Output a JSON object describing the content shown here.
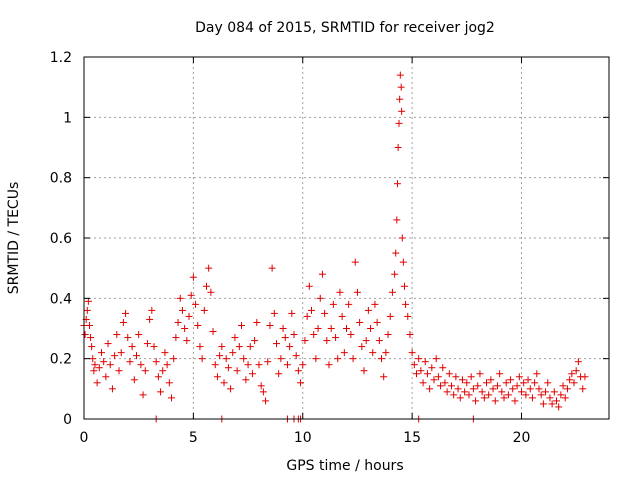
{
  "chart_data": {
    "type": "scatter",
    "title": "Day 084 of 2015, SRMTID for receiver jog2",
    "xlabel": "GPS time / hours",
    "ylabel": "SRMTID / TECUs",
    "xlim": [
      0,
      24
    ],
    "ylim": [
      0,
      1.2
    ],
    "xticks": [
      "0",
      "5",
      "10",
      "15",
      "20"
    ],
    "yticks": [
      "0",
      "0.2",
      "0.4",
      "0.6",
      "0.8",
      "1",
      "1.2"
    ],
    "grid": true,
    "marker": "plus",
    "marker_color": "#e00000",
    "series": [
      {
        "name": "SRMTID",
        "points": [
          [
            0.0,
            0.31
          ],
          [
            0.05,
            0.28
          ],
          [
            0.1,
            0.33
          ],
          [
            0.15,
            0.36
          ],
          [
            0.2,
            0.39
          ],
          [
            0.25,
            0.31
          ],
          [
            0.3,
            0.27
          ],
          [
            0.35,
            0.24
          ],
          [
            0.4,
            0.2
          ],
          [
            0.45,
            0.16
          ],
          [
            0.5,
            0.18
          ],
          [
            0.6,
            0.12
          ],
          [
            0.7,
            0.17
          ],
          [
            0.8,
            0.22
          ],
          [
            0.9,
            0.19
          ],
          [
            1.0,
            0.14
          ],
          [
            1.1,
            0.25
          ],
          [
            1.2,
            0.18
          ],
          [
            1.3,
            0.1
          ],
          [
            1.4,
            0.21
          ],
          [
            1.5,
            0.28
          ],
          [
            1.6,
            0.16
          ],
          [
            1.7,
            0.22
          ],
          [
            1.8,
            0.32
          ],
          [
            1.9,
            0.35
          ],
          [
            2.0,
            0.27
          ],
          [
            2.1,
            0.19
          ],
          [
            2.2,
            0.24
          ],
          [
            2.3,
            0.13
          ],
          [
            2.4,
            0.21
          ],
          [
            2.5,
            0.28
          ],
          [
            2.6,
            0.18
          ],
          [
            2.7,
            0.08
          ],
          [
            2.8,
            0.16
          ],
          [
            2.9,
            0.25
          ],
          [
            3.0,
            0.33
          ],
          [
            3.1,
            0.36
          ],
          [
            3.2,
            0.24
          ],
          [
            3.3,
            0.19
          ],
          [
            3.4,
            0.14
          ],
          [
            3.5,
            0.09
          ],
          [
            3.6,
            0.16
          ],
          [
            3.7,
            0.22
          ],
          [
            3.8,
            0.18
          ],
          [
            3.9,
            0.12
          ],
          [
            4.0,
            0.07
          ],
          [
            4.1,
            0.2
          ],
          [
            4.2,
            0.27
          ],
          [
            4.3,
            0.32
          ],
          [
            4.4,
            0.4
          ],
          [
            4.5,
            0.36
          ],
          [
            4.6,
            0.3
          ],
          [
            4.7,
            0.26
          ],
          [
            4.8,
            0.34
          ],
          [
            4.9,
            0.41
          ],
          [
            5.0,
            0.47
          ],
          [
            5.1,
            0.38
          ],
          [
            5.2,
            0.31
          ],
          [
            5.3,
            0.24
          ],
          [
            5.4,
            0.2
          ],
          [
            5.5,
            0.36
          ],
          [
            5.6,
            0.44
          ],
          [
            5.7,
            0.5
          ],
          [
            5.8,
            0.42
          ],
          [
            5.9,
            0.29
          ],
          [
            6.0,
            0.18
          ],
          [
            6.1,
            0.14
          ],
          [
            6.2,
            0.21
          ],
          [
            6.3,
            0.24
          ],
          [
            6.4,
            0.12
          ],
          [
            6.5,
            0.2
          ],
          [
            6.6,
            0.17
          ],
          [
            6.7,
            0.1
          ],
          [
            6.8,
            0.22
          ],
          [
            6.9,
            0.27
          ],
          [
            7.0,
            0.16
          ],
          [
            7.1,
            0.24
          ],
          [
            7.2,
            0.31
          ],
          [
            7.3,
            0.2
          ],
          [
            7.4,
            0.13
          ],
          [
            7.5,
            0.18
          ],
          [
            7.6,
            0.24
          ],
          [
            7.7,
            0.15
          ],
          [
            7.8,
            0.26
          ],
          [
            7.9,
            0.32
          ],
          [
            8.0,
            0.18
          ],
          [
            8.1,
            0.11
          ],
          [
            8.2,
            0.09
          ],
          [
            8.3,
            0.06
          ],
          [
            8.4,
            0.19
          ],
          [
            8.5,
            0.31
          ],
          [
            8.6,
            0.5
          ],
          [
            8.7,
            0.35
          ],
          [
            8.8,
            0.25
          ],
          [
            8.9,
            0.15
          ],
          [
            9.0,
            0.2
          ],
          [
            9.1,
            0.3
          ],
          [
            9.2,
            0.27
          ],
          [
            9.3,
            0.18
          ],
          [
            9.4,
            0.24
          ],
          [
            9.5,
            0.35
          ],
          [
            9.6,
            0.28
          ],
          [
            9.7,
            0.21
          ],
          [
            9.8,
            0.16
          ],
          [
            9.9,
            0.12
          ],
          [
            10.0,
            0.18
          ],
          [
            10.1,
            0.26
          ],
          [
            10.2,
            0.34
          ],
          [
            10.3,
            0.44
          ],
          [
            10.4,
            0.36
          ],
          [
            10.5,
            0.28
          ],
          [
            10.6,
            0.2
          ],
          [
            10.7,
            0.3
          ],
          [
            10.8,
            0.4
          ],
          [
            10.9,
            0.48
          ],
          [
            11.0,
            0.35
          ],
          [
            11.1,
            0.26
          ],
          [
            11.2,
            0.18
          ],
          [
            11.3,
            0.3
          ],
          [
            11.4,
            0.38
          ],
          [
            11.5,
            0.27
          ],
          [
            11.6,
            0.2
          ],
          [
            11.7,
            0.42
          ],
          [
            11.8,
            0.34
          ],
          [
            11.9,
            0.22
          ],
          [
            12.0,
            0.3
          ],
          [
            12.1,
            0.38
          ],
          [
            12.2,
            0.28
          ],
          [
            12.3,
            0.2
          ],
          [
            12.4,
            0.52
          ],
          [
            12.5,
            0.42
          ],
          [
            12.6,
            0.32
          ],
          [
            12.7,
            0.24
          ],
          [
            12.8,
            0.16
          ],
          [
            12.9,
            0.26
          ],
          [
            13.0,
            0.36
          ],
          [
            13.1,
            0.3
          ],
          [
            13.2,
            0.22
          ],
          [
            13.3,
            0.38
          ],
          [
            13.4,
            0.32
          ],
          [
            13.5,
            0.26
          ],
          [
            13.6,
            0.2
          ],
          [
            13.7,
            0.14
          ],
          [
            13.8,
            0.22
          ],
          [
            13.9,
            0.28
          ],
          [
            14.0,
            0.34
          ],
          [
            14.1,
            0.42
          ],
          [
            14.2,
            0.48
          ],
          [
            14.25,
            0.55
          ],
          [
            14.3,
            0.66
          ],
          [
            14.33,
            0.78
          ],
          [
            14.36,
            0.9
          ],
          [
            14.4,
            0.98
          ],
          [
            14.43,
            1.06
          ],
          [
            14.46,
            1.14
          ],
          [
            14.5,
            1.1
          ],
          [
            14.52,
            1.02
          ],
          [
            14.55,
            0.6
          ],
          [
            14.6,
            0.52
          ],
          [
            14.65,
            0.44
          ],
          [
            14.7,
            0.38
          ],
          [
            14.8,
            0.34
          ],
          [
            14.9,
            0.28
          ],
          [
            15.0,
            0.22
          ],
          [
            15.1,
            0.18
          ],
          [
            15.2,
            0.15
          ],
          [
            15.3,
            0.2
          ],
          [
            15.4,
            0.16
          ],
          [
            15.5,
            0.12
          ],
          [
            15.6,
            0.19
          ],
          [
            15.7,
            0.15
          ],
          [
            15.8,
            0.1
          ],
          [
            15.9,
            0.17
          ],
          [
            16.0,
            0.13
          ],
          [
            16.1,
            0.2
          ],
          [
            16.2,
            0.14
          ],
          [
            16.3,
            0.11
          ],
          [
            16.4,
            0.17
          ],
          [
            16.5,
            0.12
          ],
          [
            16.6,
            0.09
          ],
          [
            16.7,
            0.15
          ],
          [
            16.8,
            0.11
          ],
          [
            16.9,
            0.08
          ],
          [
            17.0,
            0.14
          ],
          [
            17.1,
            0.1
          ],
          [
            17.2,
            0.07
          ],
          [
            17.3,
            0.13
          ],
          [
            17.4,
            0.09
          ],
          [
            17.5,
            0.12
          ],
          [
            17.6,
            0.08
          ],
          [
            17.7,
            0.14
          ],
          [
            17.8,
            0.1
          ],
          [
            17.9,
            0.06
          ],
          [
            18.0,
            0.11
          ],
          [
            18.1,
            0.15
          ],
          [
            18.2,
            0.09
          ],
          [
            18.3,
            0.07
          ],
          [
            18.4,
            0.12
          ],
          [
            18.5,
            0.08
          ],
          [
            18.6,
            0.13
          ],
          [
            18.7,
            0.1
          ],
          [
            18.8,
            0.06
          ],
          [
            18.9,
            0.11
          ],
          [
            19.0,
            0.15
          ],
          [
            19.1,
            0.09
          ],
          [
            19.2,
            0.07
          ],
          [
            19.3,
            0.12
          ],
          [
            19.4,
            0.08
          ],
          [
            19.5,
            0.13
          ],
          [
            19.6,
            0.1
          ],
          [
            19.7,
            0.06
          ],
          [
            19.8,
            0.11
          ],
          [
            19.9,
            0.14
          ],
          [
            20.0,
            0.09
          ],
          [
            20.1,
            0.12
          ],
          [
            20.2,
            0.08
          ],
          [
            20.3,
            0.13
          ],
          [
            20.4,
            0.1
          ],
          [
            20.5,
            0.07
          ],
          [
            20.6,
            0.12
          ],
          [
            20.7,
            0.15
          ],
          [
            20.8,
            0.1
          ],
          [
            20.9,
            0.08
          ],
          [
            21.0,
            0.05
          ],
          [
            21.1,
            0.09
          ],
          [
            21.2,
            0.12
          ],
          [
            21.3,
            0.07
          ],
          [
            21.4,
            0.05
          ],
          [
            21.5,
            0.09
          ],
          [
            21.6,
            0.06
          ],
          [
            21.7,
            0.04
          ],
          [
            21.8,
            0.08
          ],
          [
            21.9,
            0.11
          ],
          [
            22.0,
            0.07
          ],
          [
            22.1,
            0.1
          ],
          [
            22.2,
            0.13
          ],
          [
            22.3,
            0.15
          ],
          [
            22.4,
            0.12
          ],
          [
            22.5,
            0.16
          ],
          [
            22.6,
            0.19
          ],
          [
            22.7,
            0.14
          ],
          [
            22.8,
            0.1
          ],
          [
            22.9,
            0.14
          ],
          [
            3.3,
            0.0
          ],
          [
            6.3,
            0.0
          ],
          [
            9.3,
            0.0
          ],
          [
            9.6,
            0.0
          ],
          [
            9.8,
            0.0
          ],
          [
            9.9,
            0.0
          ],
          [
            15.3,
            0.0
          ],
          [
            17.8,
            0.0
          ]
        ]
      }
    ]
  }
}
